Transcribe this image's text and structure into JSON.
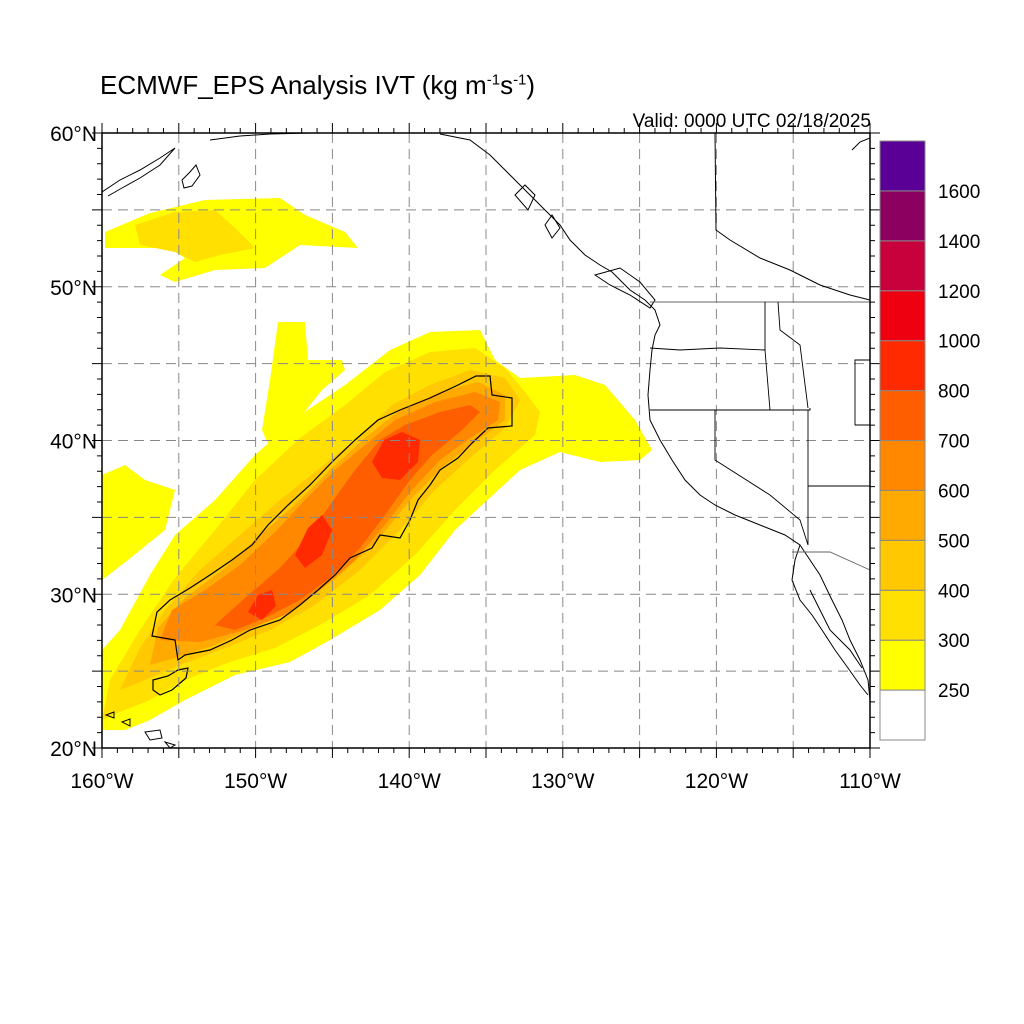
{
  "title": {
    "prefix": "ECMWF_EPS Analysis IVT (kg m",
    "exp1": "-1",
    "mid": "s",
    "exp2": "-1",
    "suffix": ")"
  },
  "valid_label": "Valid: 0000 UTC 02/18/2025",
  "map": {
    "lon_range": [
      -160,
      -110
    ],
    "lat_range": [
      20,
      60
    ],
    "grid_lons": [
      -155,
      -150,
      -145,
      -140,
      -135,
      -130,
      -125,
      -120,
      -115
    ],
    "grid_lats": [
      25,
      30,
      35,
      40,
      45,
      50,
      55
    ],
    "lon_labels": [
      {
        "lon": -160,
        "text": "160°W"
      },
      {
        "lon": -150,
        "text": "150°W"
      },
      {
        "lon": -140,
        "text": "140°W"
      },
      {
        "lon": -130,
        "text": "130°W"
      },
      {
        "lon": -120,
        "text": "120°W"
      },
      {
        "lon": -110,
        "text": "110°W"
      }
    ],
    "lat_labels": [
      {
        "lat": 60,
        "text": "60°N"
      },
      {
        "lat": 50,
        "text": "50°N"
      },
      {
        "lat": 40,
        "text": "40°N"
      },
      {
        "lat": 30,
        "text": "30°N"
      },
      {
        "lat": 20,
        "text": "20°N"
      }
    ],
    "grid_color": "#888888",
    "coast_color": "#000000"
  },
  "colorbar": {
    "colors": [
      "#ffffff",
      "#ffff00",
      "#ffe000",
      "#ffc800",
      "#ffaa00",
      "#ff8800",
      "#ff5e00",
      "#ff2a00",
      "#ee0010",
      "#c8003c",
      "#8c0060",
      "#5a0096"
    ],
    "labels": [
      "250",
      "300",
      "400",
      "500",
      "600",
      "700",
      "800",
      "1000",
      "1200",
      "1400",
      "1600"
    ]
  },
  "ivt_field": {
    "description_levels": [
      250,
      300,
      400,
      500,
      600,
      700,
      800
    ],
    "river_axis": [
      [
        -157.5,
        26.0
      ],
      [
        -152.0,
        28.0
      ],
      [
        -147.0,
        32.5
      ],
      [
        -141.0,
        38.5
      ],
      [
        -136.0,
        41.5
      ]
    ],
    "cores": [
      {
        "lon": -141.0,
        "lat": 39.3,
        "level": 800
      },
      {
        "lon": -146.5,
        "lat": 32.5,
        "level": 800
      },
      {
        "lon": -150.0,
        "lat": 28.5,
        "level": 700
      }
    ]
  }
}
